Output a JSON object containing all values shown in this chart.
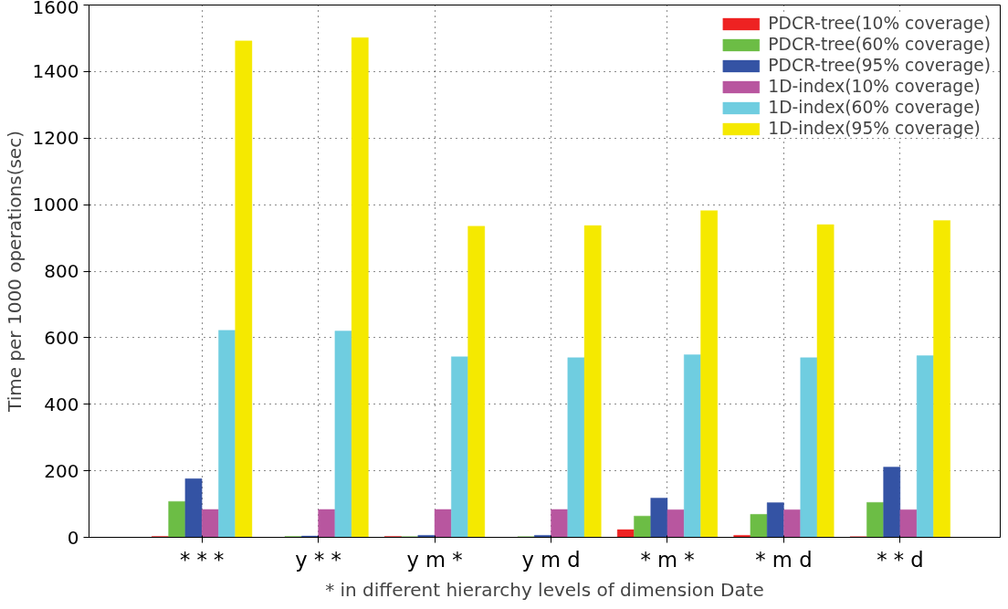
{
  "chart_data": {
    "type": "bar",
    "xlabel": "* in different hierarchy levels of dimension Date",
    "ylabel": "Time per 1000 operations(sec)",
    "categories": [
      "* * *",
      "y * *",
      "y m *",
      "y m d",
      "* m *",
      "* m d",
      "* * d"
    ],
    "series": [
      {
        "name": "PDCR-tree(10% coverage)",
        "color": "#ee2222",
        "values": [
          3,
          null,
          3,
          null,
          23,
          6,
          2
        ]
      },
      {
        "name": "PDCR-tree(60% coverage)",
        "color": "#6cbd45",
        "values": [
          108,
          3,
          2,
          2,
          64,
          69,
          105
        ]
      },
      {
        "name": "PDCR-tree(95% coverage)",
        "color": "#3453a4",
        "values": [
          176,
          4,
          6,
          6,
          118,
          104,
          211
        ]
      },
      {
        "name": "1D-index(10% coverage)",
        "color": "#b8569f",
        "values": [
          84,
          84,
          84,
          84,
          83,
          83,
          83
        ]
      },
      {
        "name": "1D-index(60% coverage)",
        "color": "#6fcde0",
        "values": [
          622,
          620,
          543,
          540,
          549,
          540,
          546
        ]
      },
      {
        "name": "1D-index(95% coverage)",
        "color": "#f5e900",
        "values": [
          1492,
          1502,
          935,
          937,
          982,
          940,
          952
        ]
      }
    ],
    "ylim": [
      0,
      1600
    ],
    "yticks": [
      0,
      200,
      400,
      600,
      800,
      1000,
      1200,
      1400,
      1600
    ],
    "grid": true,
    "legend": "top right"
  }
}
